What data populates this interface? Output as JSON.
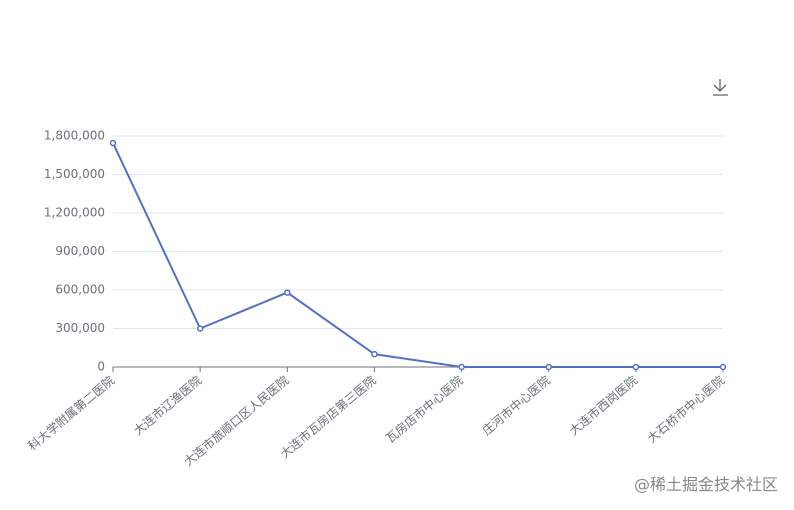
{
  "chart_data": {
    "type": "line",
    "categories": [
      "科大学附属第二医院",
      "大连市辽渔医院",
      "大连市旅顺口区人民医院",
      "大连市瓦房店第三医院",
      "瓦房店市中心医院",
      "庄河市中心医院",
      "大连市西岗医院",
      "大石桥市中心医院"
    ],
    "series": [
      {
        "name": null,
        "color": "#5470c6",
        "values": [
          1745000,
          300000,
          580000,
          100000,
          0,
          0,
          0,
          0
        ]
      }
    ],
    "ylim": [
      0,
      1800000
    ],
    "yticks": [
      0,
      {
        "value": 300000,
        "label": "300,000"
      },
      {
        "value": 600000,
        "label": "600,000"
      },
      {
        "value": 900000,
        "label": "900,000"
      },
      {
        "value": 1200000,
        "label": "1,200,000"
      },
      {
        "value": 1500000,
        "label": "1,500,000"
      },
      {
        "value": 1800000,
        "label": "1,800,000"
      }
    ],
    "grid": true,
    "watermark": "@稀土掘金技术社区"
  }
}
